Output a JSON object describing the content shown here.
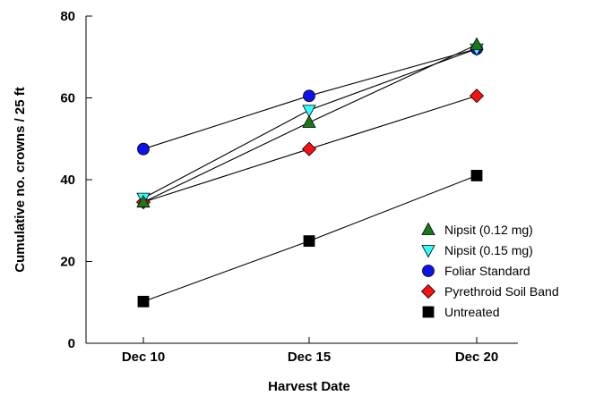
{
  "chart_data": {
    "type": "line",
    "xlabel": "Harvest Date",
    "ylabel": "Cumulative no. crowns / 25 ft",
    "categories": [
      "Dec 10",
      "Dec 15",
      "Dec 20"
    ],
    "ylim": [
      0,
      80
    ],
    "yticks": [
      0,
      20,
      40,
      60,
      80
    ],
    "grid": false,
    "legend_position": "bottom-right",
    "series": [
      {
        "name": "Nipsit (0.12 mg)",
        "marker": "triangle-up",
        "color": "#1a7a1a",
        "values": [
          34.5,
          54,
          73
        ]
      },
      {
        "name": "Nipsit (0.15 mg)",
        "marker": "triangle-down",
        "color": "#33ffff",
        "values": [
          35.5,
          57,
          72
        ]
      },
      {
        "name": "Foliar Standard",
        "marker": "circle",
        "color": "#1010ee",
        "values": [
          47.5,
          60.5,
          72
        ]
      },
      {
        "name": "Pyrethroid Soil Band",
        "marker": "diamond",
        "color": "#ff1010",
        "values": [
          34.5,
          47.5,
          60.5
        ]
      },
      {
        "name": "Untreated",
        "marker": "square",
        "color": "#000000",
        "values": [
          10.2,
          25,
          41
        ]
      }
    ]
  }
}
